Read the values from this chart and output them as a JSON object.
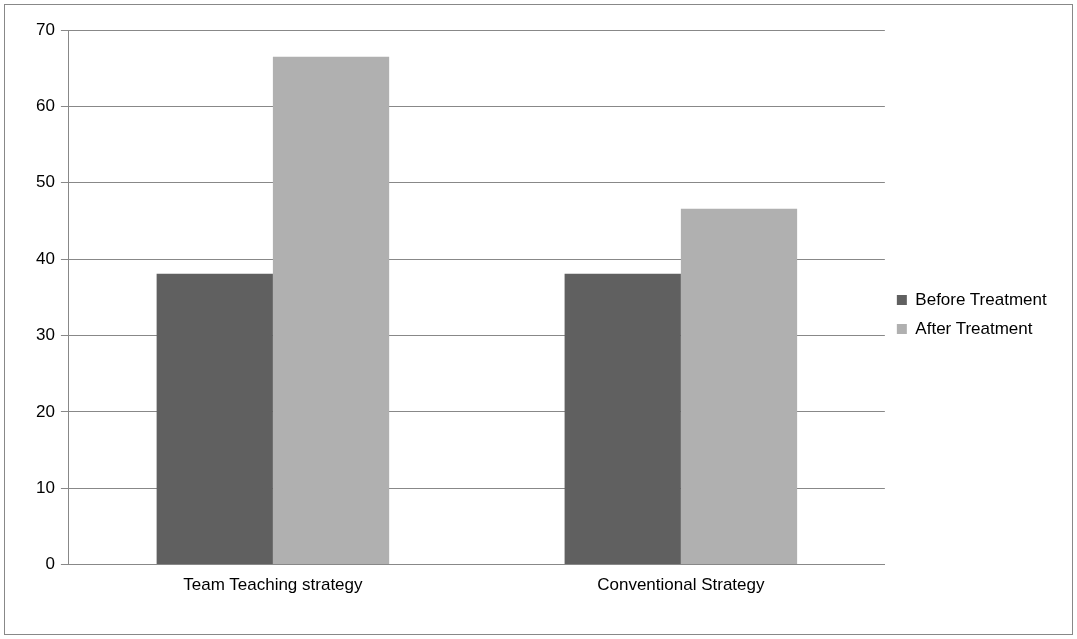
{
  "chart_data": {
    "type": "bar",
    "categories": [
      "Team Teaching strategy",
      "Conventional Strategy"
    ],
    "series": [
      {
        "name": "Before Treatment",
        "color": "#606060",
        "values": [
          38.1,
          38.1
        ]
      },
      {
        "name": "After Treatment",
        "color": "#b0b0b0",
        "values": [
          66.5,
          46.6
        ]
      }
    ],
    "ylim": [
      0,
      70
    ],
    "yticks": [
      0,
      10,
      20,
      30,
      40,
      50,
      60,
      70
    ],
    "grid": "y",
    "legend": "right"
  }
}
